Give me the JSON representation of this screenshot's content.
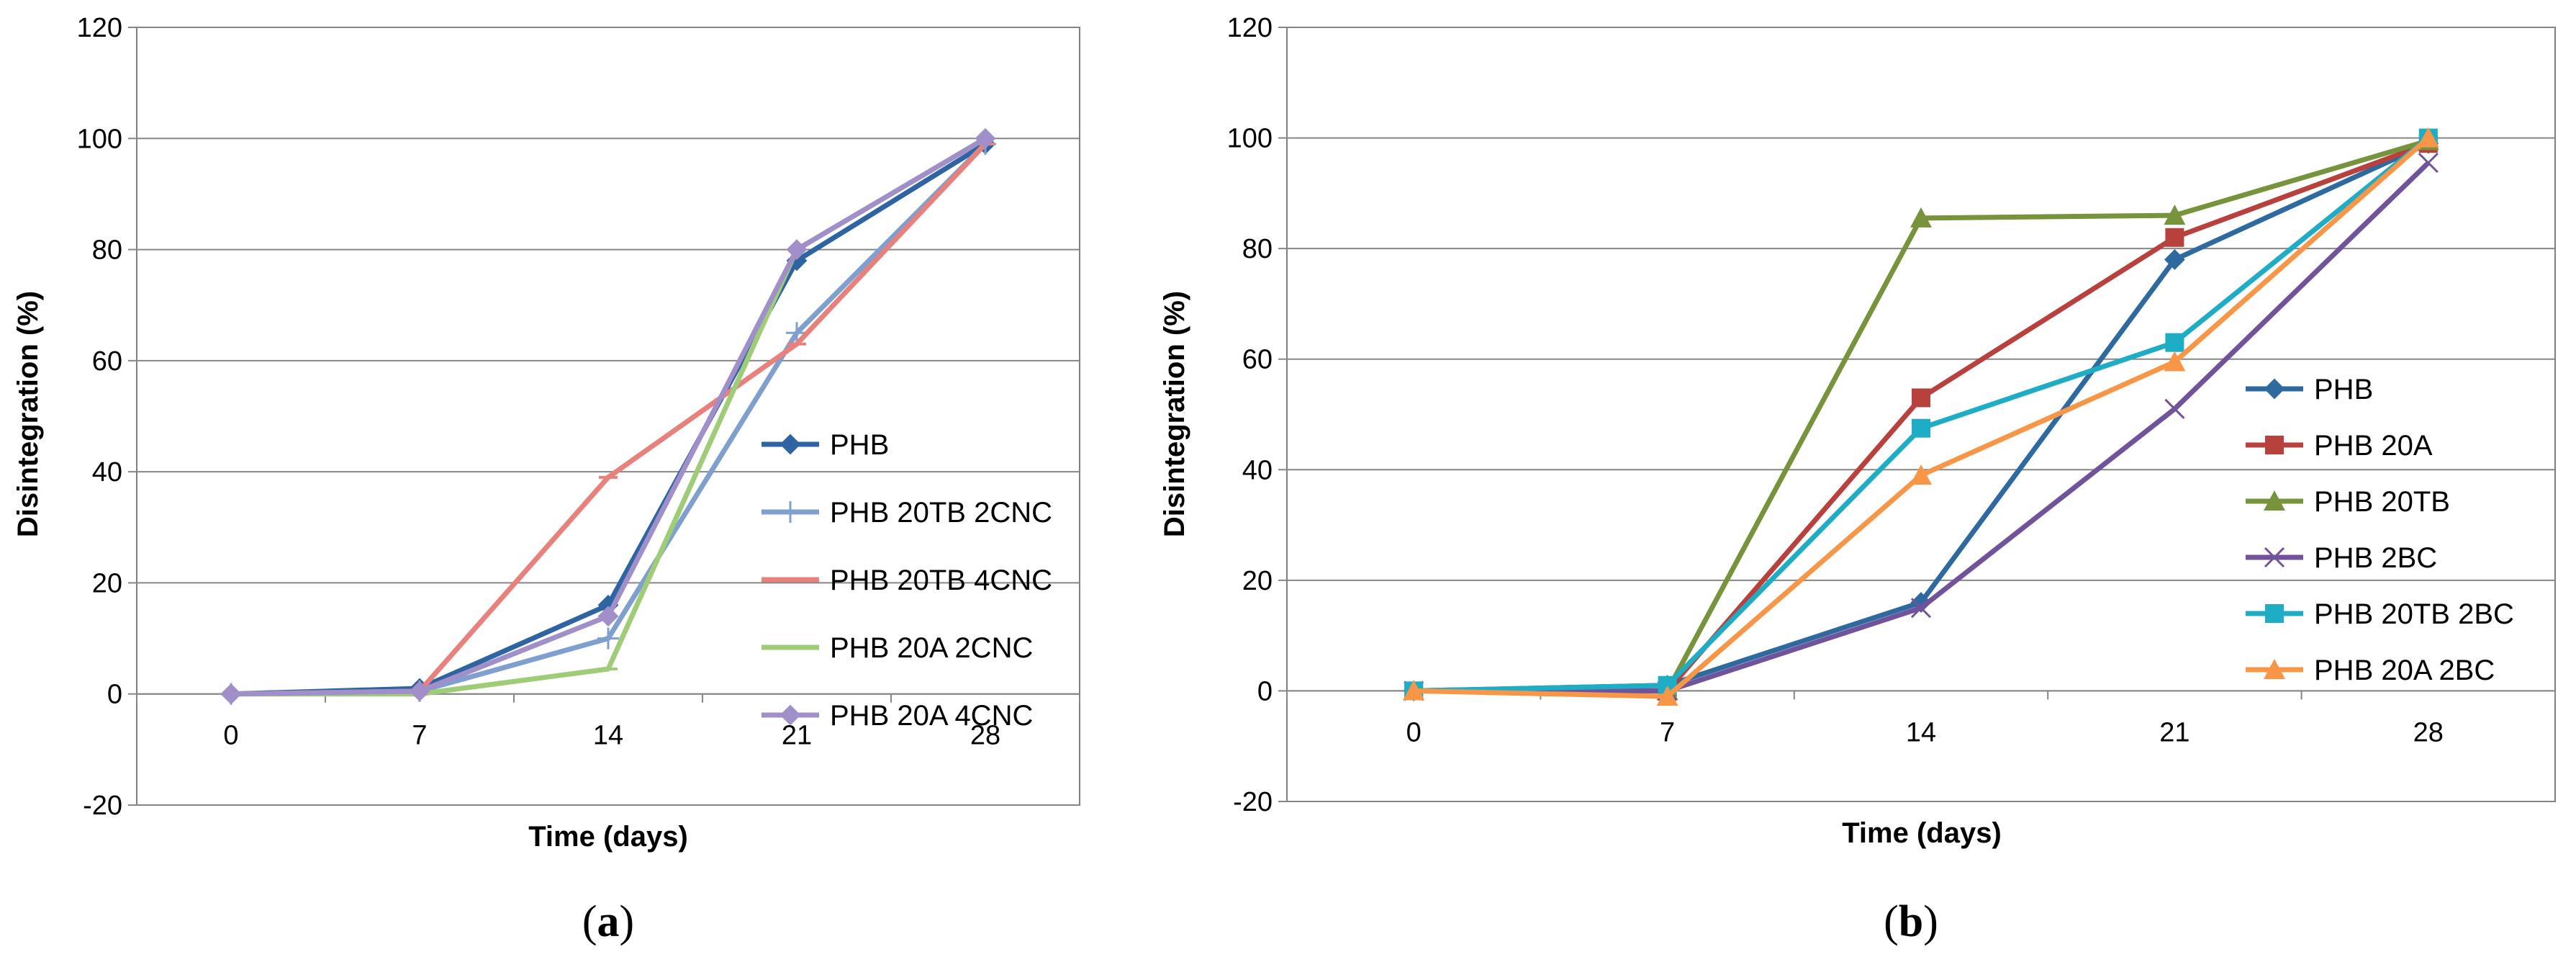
{
  "chart_data": [
    {
      "type": "line",
      "panel_label": "a",
      "title": "",
      "xlabel": "Time (days)",
      "ylabel": "Disintegration  (%)",
      "categories": [
        "0",
        "7",
        "14",
        "21",
        "28"
      ],
      "ylim": [
        -20,
        120
      ],
      "yticks": [
        "-20",
        "0",
        "20",
        "40",
        "60",
        "80",
        "100",
        "120"
      ],
      "grid": true,
      "legend_position": "right",
      "series": [
        {
          "name": "PHB",
          "color": "#2f64a3",
          "marker": "diamond",
          "values": [
            0,
            1,
            16,
            78,
            99
          ]
        },
        {
          "name": "PHB 20TB 2CNC",
          "color": "#7f9fcf",
          "marker": "plus",
          "values": [
            0,
            0.5,
            10,
            65,
            99
          ]
        },
        {
          "name": "PHB 20TB 4CNC",
          "color": "#e8807c",
          "marker": "dash",
          "values": [
            0,
            0.5,
            39,
            63,
            99
          ]
        },
        {
          "name": "PHB 20A 2CNC",
          "color": "#9fcc77",
          "marker": "dash",
          "values": [
            0,
            0,
            4.5,
            80,
            100
          ]
        },
        {
          "name": "PHB 20A 4CNC",
          "color": "#a08fc8",
          "marker": "diamond",
          "values": [
            0,
            0.5,
            14,
            80,
            100
          ]
        }
      ]
    },
    {
      "type": "line",
      "panel_label": "b",
      "title": "",
      "xlabel": "Time (days)",
      "ylabel": "Disintegration  (%)",
      "categories": [
        "0",
        "7",
        "14",
        "21",
        "28"
      ],
      "ylim": [
        -20,
        120
      ],
      "yticks": [
        "-20",
        "0",
        "20",
        "40",
        "60",
        "80",
        "100",
        "120"
      ],
      "grid": true,
      "legend_position": "right",
      "series": [
        {
          "name": "PHB",
          "color": "#2e6aa0",
          "marker": "diamond",
          "values": [
            0,
            1,
            16,
            78,
            99
          ]
        },
        {
          "name": "PHB 20A",
          "color": "#b8403d",
          "marker": "square",
          "values": [
            0,
            0,
            53,
            82,
            99
          ]
        },
        {
          "name": "PHB 20TB",
          "color": "#77933c",
          "marker": "triangle",
          "values": [
            0,
            0,
            85.5,
            86,
            99.5
          ]
        },
        {
          "name": "PHB 2BC",
          "color": "#70539a",
          "marker": "x",
          "values": [
            0,
            0,
            15,
            51,
            95.5
          ]
        },
        {
          "name": "PHB 20TB 2BC",
          "color": "#1fadc5",
          "marker": "square",
          "values": [
            0,
            1,
            47.5,
            63,
            100
          ]
        },
        {
          "name": "PHB 20A 2BC",
          "color": "#f79646",
          "marker": "triangle",
          "values": [
            0,
            -1,
            39,
            59.5,
            100
          ]
        }
      ]
    }
  ],
  "captions": [
    {
      "open": "(",
      "letter": "a",
      "close": ")"
    },
    {
      "open": "(",
      "letter": "b",
      "close": ")"
    }
  ]
}
